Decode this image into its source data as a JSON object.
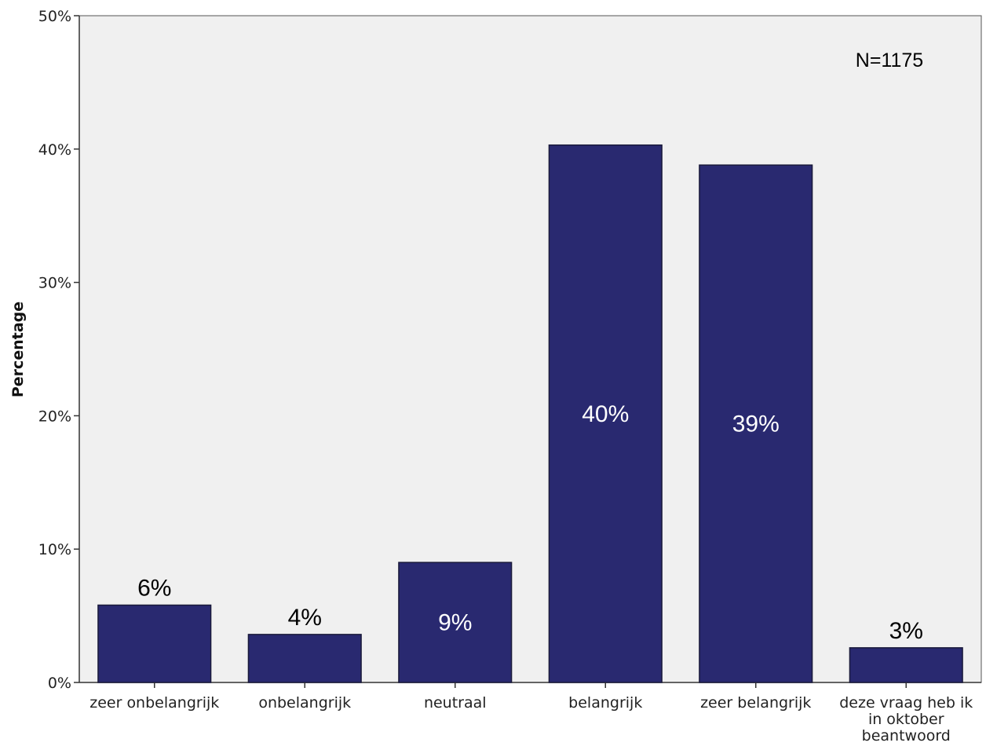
{
  "chart_data": {
    "type": "bar",
    "categories": [
      [
        "zeer onbelangrijk"
      ],
      [
        "onbelangrijk"
      ],
      [
        "neutraal"
      ],
      [
        "belangrijk"
      ],
      [
        "zeer belangrijk"
      ],
      [
        "deze vraag heb ik",
        "in oktober",
        "beantwoord"
      ]
    ],
    "values": [
      5.8,
      3.6,
      9.0,
      40.3,
      38.8,
      2.6
    ],
    "data_labels": [
      "6%",
      "4%",
      "9%",
      "40%",
      "39%",
      "3%"
    ],
    "data_label_position": [
      "above",
      "above",
      "inside",
      "inside",
      "inside",
      "above"
    ],
    "title": "",
    "xlabel": "",
    "ylabel": "Percentage",
    "ylim": [
      0,
      50
    ],
    "yticks": [
      0,
      10,
      20,
      30,
      40,
      50
    ],
    "ytick_labels": [
      "0%",
      "10%",
      "20%",
      "30%",
      "40%",
      "50%"
    ],
    "annotation": "N=1175",
    "grid": false,
    "legend": "none",
    "colors": {
      "bar": "#292970",
      "bar_outline": "#1a1a3a",
      "plot_background": "#f0f0f0",
      "label_inside": "#ffffff",
      "label_above": "#000000"
    }
  }
}
